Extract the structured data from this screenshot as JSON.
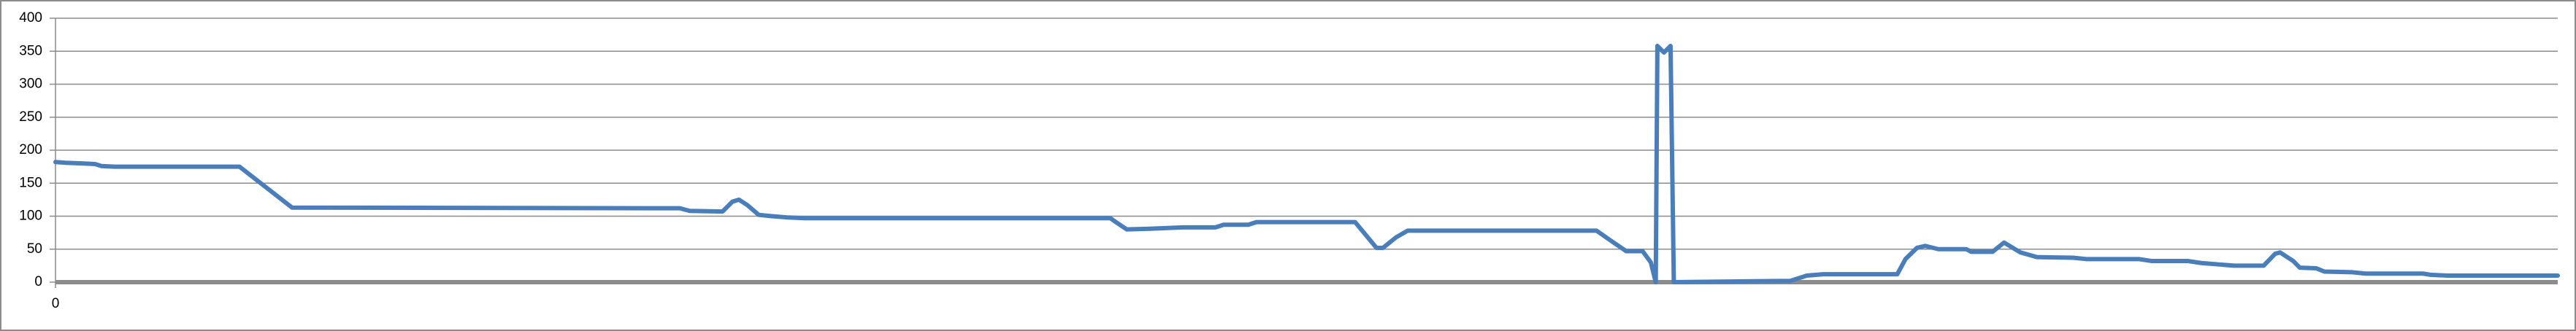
{
  "chart_data": {
    "type": "line",
    "x": [
      0,
      6,
      16,
      24,
      28,
      36,
      112,
      144,
      380,
      386,
      406,
      412,
      416,
      421,
      428,
      436,
      446,
      456,
      642,
      646,
      652,
      666,
      686,
      706,
      711,
      726,
      731,
      791,
      796,
      804,
      808,
      816,
      823,
      938,
      946,
      956,
      966,
      971,
      974,
      975,
      979,
      983,
      985,
      1056,
      1066,
      1076,
      1121,
      1126,
      1133,
      1138,
      1146,
      1163,
      1166,
      1179,
      1186,
      1196,
      1206,
      1228,
      1236,
      1268,
      1276,
      1298,
      1306,
      1316,
      1326,
      1344,
      1351,
      1354,
      1362,
      1366,
      1376,
      1381,
      1398,
      1406,
      1441,
      1446,
      1456,
      1523
    ],
    "series": [
      {
        "color": "#4a7ebb",
        "values": [
          182,
          181,
          180,
          179,
          176,
          175,
          175,
          113,
          112,
          108,
          107,
          122,
          125,
          117,
          102,
          100,
          98,
          97,
          97,
          90,
          80,
          81,
          83,
          83,
          87,
          87,
          91,
          91,
          76,
          52,
          52,
          68,
          78,
          78,
          64,
          47,
          47,
          30,
          0,
          358,
          348,
          358,
          0,
          2,
          10,
          12,
          12,
          35,
          52,
          55,
          50,
          50,
          46,
          46,
          60,
          45,
          38,
          37,
          35,
          35,
          32,
          32,
          29,
          27,
          25,
          25,
          43,
          45,
          32,
          22,
          21,
          16,
          15,
          13,
          13,
          11,
          10,
          10
        ]
      }
    ],
    "xlim": [
      0,
      1523
    ],
    "xticks": [
      0
    ],
    "ylim": [
      0,
      400
    ],
    "yticks": [
      0,
      50,
      100,
      150,
      200,
      250,
      300,
      350,
      400
    ],
    "grid": true
  }
}
